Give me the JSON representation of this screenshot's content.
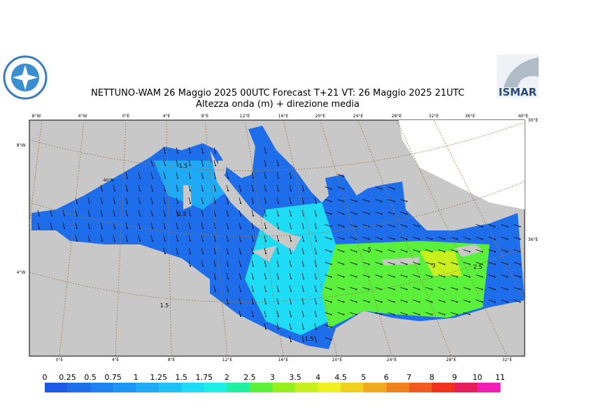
{
  "header": {
    "title": "NETTUNO-WAM  26   Maggio  2025 00UTC Forecast T+21 VT: 26   Maggio  2025 21UTC",
    "subtitle": "Altezza onda (m) + direzione media",
    "logo": "ISMAR"
  },
  "map": {
    "top_labels": [
      "8°W",
      "4°W",
      "0°E",
      "4°E",
      "8°E",
      "12°E",
      "16°E",
      "20°E",
      "24°E",
      "28°E",
      "32°E",
      "36°E",
      "40°E"
    ],
    "bottom_labels": [
      "0°E",
      "4°E",
      "8°E",
      "12°E",
      "16°E",
      "20°E",
      "24°E",
      "28°E",
      "32°E"
    ],
    "left_labels": [
      "8°W",
      "40°N",
      "4°W"
    ],
    "right_labels": [
      "30°E",
      "36°E"
    ],
    "contour_labels": [
      "1.5",
      "0.5",
      "1.5",
      ".5",
      "3",
      "2.5",
      "1.5"
    ]
  },
  "colorbar": {
    "labels": [
      "0",
      "0.25",
      "0.5",
      "0.75",
      "1",
      "1.25",
      "1.5",
      "1.75",
      "2",
      "2.5",
      "3",
      "3.5",
      "4",
      "4.5",
      "5",
      "6",
      "7",
      "8",
      "9",
      "10",
      "11"
    ],
    "colors": [
      "#1e5ae6",
      "#1e6eeb",
      "#1e82f0",
      "#1e96f5",
      "#1eaaf5",
      "#1ec3f5",
      "#1edcf5",
      "#1ef0e6",
      "#1ef0a0",
      "#5af03c",
      "#96f01e",
      "#c8f01e",
      "#f0f01e",
      "#f0d21e",
      "#f0aa1e",
      "#f0821e",
      "#f05a1e",
      "#f0321e",
      "#e61e5a",
      "#f01eb4"
    ]
  }
}
